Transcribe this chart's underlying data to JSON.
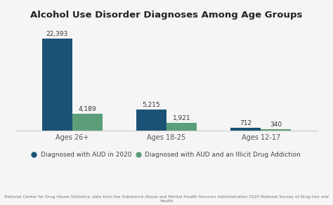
{
  "title": "Alcohol Use Disorder Diagnoses Among Age Groups",
  "categories": [
    "Ages 26+",
    "Ages 18-25",
    "Ages 12-17"
  ],
  "aud_values": [
    22393,
    5215,
    712
  ],
  "illicit_values": [
    4189,
    1921,
    340
  ],
  "aud_labels": [
    "22,393",
    "5,215",
    "712"
  ],
  "illicit_labels": [
    "4,189",
    "1,921",
    "340"
  ],
  "aud_color": "#1a5276",
  "illicit_color": "#5d9e7a",
  "background_color": "#f5f5f5",
  "legend_label_aud": "Diagnosed with AUD in 2020",
  "legend_label_illicit": "Diagnosed with AUD and an Illicit Drug Addiction",
  "footnote": "National Center for Drug Abuse Statistics, data from the Substance Abuse and Mental Health Services Administration 2020 National Survey of Drug Use and Health",
  "ylim": [
    0,
    26000
  ],
  "bar_width": 0.32,
  "title_fontsize": 9.5,
  "label_fontsize": 6.5,
  "tick_fontsize": 7,
  "legend_fontsize": 6.5,
  "footnote_fontsize": 4.2
}
